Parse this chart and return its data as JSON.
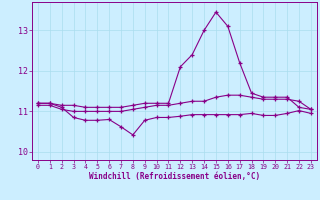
{
  "xlabel": "Windchill (Refroidissement éolien,°C)",
  "background_color": "#cceeff",
  "line_color": "#880088",
  "grid_color": "#aaddee",
  "hours": [
    0,
    1,
    2,
    3,
    4,
    5,
    6,
    7,
    8,
    9,
    10,
    11,
    12,
    13,
    14,
    15,
    16,
    17,
    18,
    19,
    20,
    21,
    22,
    23
  ],
  "temp": [
    11.2,
    11.2,
    11.15,
    11.15,
    11.1,
    11.1,
    11.1,
    11.1,
    11.15,
    11.2,
    11.2,
    11.2,
    12.1,
    12.4,
    13.0,
    13.45,
    13.1,
    12.2,
    11.45,
    11.35,
    11.35,
    11.35,
    11.1,
    11.05
  ],
  "mid": [
    11.15,
    11.15,
    11.05,
    11.0,
    11.0,
    11.0,
    11.0,
    11.0,
    11.05,
    11.1,
    11.15,
    11.15,
    11.2,
    11.25,
    11.25,
    11.35,
    11.4,
    11.4,
    11.35,
    11.3,
    11.3,
    11.3,
    11.25,
    11.05
  ],
  "wc": [
    11.2,
    11.2,
    11.1,
    10.85,
    10.78,
    10.78,
    10.8,
    10.62,
    10.42,
    10.78,
    10.85,
    10.85,
    10.88,
    10.92,
    10.92,
    10.92,
    10.92,
    10.92,
    10.95,
    10.9,
    10.9,
    10.95,
    11.02,
    10.95
  ],
  "ylim": [
    9.8,
    13.7
  ],
  "yticks": [
    10,
    11,
    12,
    13
  ],
  "xticks": [
    0,
    1,
    2,
    3,
    4,
    5,
    6,
    7,
    8,
    9,
    10,
    11,
    12,
    13,
    14,
    15,
    16,
    17,
    18,
    19,
    20,
    21,
    22,
    23
  ]
}
